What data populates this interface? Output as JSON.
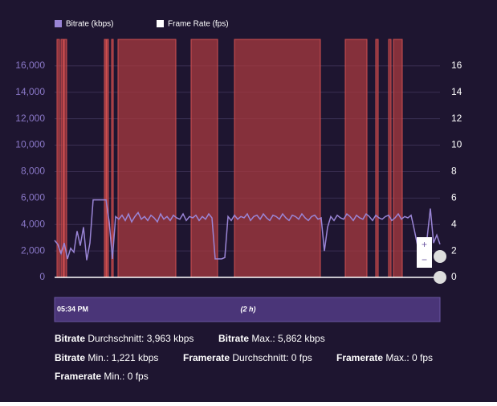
{
  "chart_data": {
    "type": "line",
    "legend": [
      "Bitrate (kbps)",
      "Frame Rate (fps)"
    ],
    "x": [
      0,
      1,
      2,
      3,
      4,
      5,
      6,
      7,
      8,
      9,
      10,
      11,
      12,
      13,
      14,
      15,
      16,
      17,
      18,
      19,
      20,
      21,
      22,
      23,
      24,
      25,
      26,
      27,
      28,
      29,
      30,
      31,
      32,
      33,
      34,
      35,
      36,
      37,
      38,
      39,
      40,
      41,
      42,
      43,
      44,
      45,
      46,
      47,
      48,
      49,
      50,
      51,
      52,
      53,
      54,
      55,
      56,
      57,
      58,
      59,
      60,
      61,
      62,
      63,
      64,
      65,
      66,
      67,
      68,
      69,
      70,
      71,
      72,
      73,
      74,
      75,
      76,
      77,
      78,
      79,
      80,
      81,
      82,
      83,
      84,
      85,
      86,
      87,
      88,
      89,
      90,
      91,
      92,
      93,
      94,
      95,
      96,
      97,
      98,
      99,
      100,
      101,
      102,
      103,
      104,
      105,
      106,
      107,
      108,
      109,
      110,
      111,
      112,
      113,
      114,
      115,
      116,
      117,
      118,
      119,
      120
    ],
    "xlim": [
      0,
      120
    ],
    "series": [
      {
        "name": "Bitrate (kbps)",
        "color": "#9a85d6",
        "values": [
          2800,
          2500,
          1800,
          2600,
          1400,
          2200,
          1900,
          3500,
          2400,
          3800,
          1300,
          2600,
          5862,
          5862,
          5862,
          5862,
          5862,
          4200,
          1400,
          4600,
          4400,
          4700,
          4300,
          4800,
          4200,
          4600,
          4900,
          4400,
          4600,
          4300,
          4700,
          4500,
          4200,
          4800,
          4400,
          4600,
          4300,
          4700,
          4500,
          4400,
          4800,
          4300,
          4600,
          4500,
          4700,
          4300,
          4600,
          4400,
          4800,
          4500,
          1400,
          1400,
          1400,
          1500,
          4600,
          4300,
          4700,
          4400,
          4600,
          4500,
          4800,
          4300,
          4600,
          4700,
          4400,
          4800,
          4500,
          4300,
          4700,
          4600,
          4400,
          4800,
          4500,
          4300,
          4700,
          4600,
          4400,
          4800,
          4500,
          4300,
          4600,
          4700,
          4400,
          4500,
          2000,
          3800,
          4600,
          4300,
          4700,
          4500,
          4400,
          4800,
          4600,
          4300,
          4700,
          4500,
          4400,
          4800,
          4600,
          4300,
          4700,
          4500,
          4400,
          4600,
          4700,
          4300,
          4500,
          4800,
          4400,
          4600,
          4500,
          4700,
          3600,
          2400,
          2800,
          2200,
          3000,
          5200,
          2600,
          3200,
          2500
        ]
      },
      {
        "name": "Frame Rate (fps)",
        "color": "#ffffff",
        "axis": "y2",
        "values": [
          0,
          0,
          0,
          0,
          0,
          0,
          0,
          0,
          0,
          0,
          0,
          0,
          0,
          0,
          0,
          0,
          0,
          0,
          0,
          0,
          0,
          0,
          0,
          0,
          0,
          0,
          0,
          0,
          0,
          0,
          0,
          0,
          0,
          0,
          0,
          0,
          0,
          0,
          0,
          0,
          0,
          0,
          0,
          0,
          0,
          0,
          0,
          0,
          0,
          0,
          0,
          0,
          0,
          0,
          0,
          0,
          0,
          0,
          0,
          0,
          0,
          0,
          0,
          0,
          0,
          0,
          0,
          0,
          0,
          0,
          0,
          0,
          0,
          0,
          0,
          0,
          0,
          0,
          0,
          0,
          0,
          0,
          0,
          0,
          0,
          0,
          0,
          0,
          0,
          0,
          0,
          0,
          0,
          0,
          0,
          0,
          0,
          0,
          0,
          0,
          0,
          0,
          0,
          0,
          0,
          0,
          0,
          0,
          0,
          0,
          0,
          0,
          0,
          0,
          0,
          0,
          0,
          0,
          0,
          0,
          0
        ]
      }
    ],
    "bands": [
      [
        0.75,
        1.5
      ],
      [
        2,
        2.75
      ],
      [
        3,
        3.75
      ],
      [
        15.5,
        16
      ],
      [
        16.25,
        16.75
      ],
      [
        17.75,
        18.25
      ],
      [
        19.75,
        37.75
      ],
      [
        42.5,
        50.75
      ],
      [
        56,
        82.75
      ],
      [
        90.5,
        97.25
      ],
      [
        100,
        100.75
      ],
      [
        104,
        104.75
      ],
      [
        105.5,
        108.25
      ]
    ],
    "band_color": "#a83a3f",
    "ylim": [
      0,
      18000
    ],
    "yticks": [
      0,
      {
        "value": 2000,
        "label": "2,000"
      },
      {
        "value": 4000,
        "label": "4,000"
      },
      {
        "value": 6000,
        "label": "6,000"
      },
      {
        "value": 8000,
        "label": "8,000"
      },
      {
        "value": 10000,
        "label": "10,000"
      },
      {
        "value": 12000,
        "label": "12,000"
      },
      {
        "value": 14000,
        "label": "14,000"
      },
      {
        "value": 16000,
        "label": "16,000"
      }
    ],
    "y2lim": [
      0,
      18
    ],
    "y2ticks": [
      0,
      2,
      4,
      6,
      8,
      10,
      12,
      14,
      16
    ],
    "grid": true,
    "navigator": {
      "start": "05:34 PM",
      "range": "(2 h)"
    },
    "zoom": [
      "+",
      "−"
    ]
  },
  "stats": [
    {
      "name": "Bitrate",
      "text": " Durchschnitt: 3,963 kbps"
    },
    {
      "name": "Bitrate",
      "text": " Max.: 5,862 kbps"
    },
    {
      "name": "Bitrate",
      "text": " Min.: 1,221 kbps"
    },
    {
      "name": "Framerate",
      "text": " Durchschnitt: 0 fps"
    },
    {
      "name": "Framerate",
      "text": " Max.: 0 fps"
    },
    {
      "name": "Framerate",
      "text": " Min.: 0 fps"
    }
  ]
}
